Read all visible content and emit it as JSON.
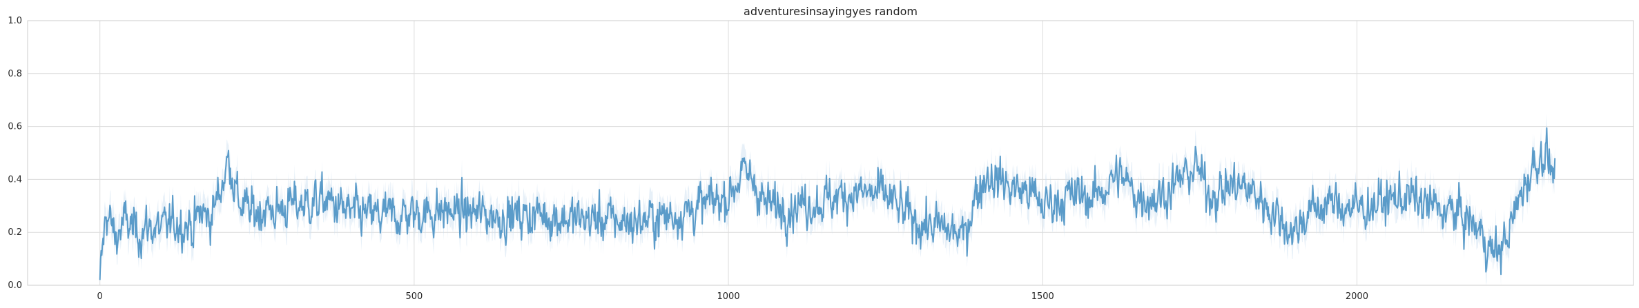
{
  "chart_data": {
    "type": "line",
    "title": "adventuresinsayingyes random",
    "xlabel": "",
    "ylabel": "",
    "xlim": [
      -115,
      2440
    ],
    "ylim": [
      0.0,
      1.0
    ],
    "x_ticks": [
      0,
      500,
      1000,
      1500,
      2000
    ],
    "y_ticks": [
      0.0,
      0.2,
      0.4,
      0.6,
      0.8,
      1.0
    ],
    "x_tick_labels": [
      "0",
      "500",
      "1000",
      "1500",
      "2000"
    ],
    "y_tick_labels": [
      "0.0",
      "0.2",
      "0.4",
      "0.6",
      "0.8",
      "1.0"
    ],
    "grid": true,
    "line_color": "#5a9bc9",
    "band_color": "#c9ddf0",
    "series": [
      {
        "x": [
          0,
          10,
          25,
          40,
          60,
          80,
          100,
          120,
          140,
          150,
          160,
          175,
          190,
          205,
          220,
          240,
          260,
          280,
          300,
          330,
          360,
          400,
          450,
          500,
          550,
          600,
          650,
          700,
          750,
          800,
          850,
          900,
          950,
          1000,
          1020,
          1040,
          1060,
          1100,
          1150,
          1200,
          1250,
          1280,
          1300,
          1330,
          1360,
          1375,
          1390,
          1410,
          1430,
          1450,
          1480,
          1500,
          1530,
          1560,
          1580,
          1600,
          1620,
          1650,
          1680,
          1700,
          1720,
          1745,
          1760,
          1780,
          1800,
          1830,
          1850,
          1870,
          1890,
          1900,
          1920,
          1950,
          1980,
          2000,
          2020,
          2050,
          2080,
          2100,
          2130,
          2160,
          2180,
          2200,
          2215,
          2230,
          2245,
          2260,
          2280,
          2300,
          2315
        ],
        "mean": [
          0.02,
          0.28,
          0.18,
          0.24,
          0.2,
          0.22,
          0.21,
          0.24,
          0.23,
          0.22,
          0.28,
          0.25,
          0.35,
          0.48,
          0.32,
          0.27,
          0.29,
          0.28,
          0.3,
          0.31,
          0.32,
          0.27,
          0.26,
          0.27,
          0.28,
          0.27,
          0.26,
          0.27,
          0.25,
          0.25,
          0.24,
          0.26,
          0.29,
          0.34,
          0.42,
          0.4,
          0.3,
          0.3,
          0.32,
          0.35,
          0.34,
          0.27,
          0.24,
          0.22,
          0.2,
          0.18,
          0.32,
          0.42,
          0.4,
          0.37,
          0.35,
          0.3,
          0.33,
          0.34,
          0.33,
          0.37,
          0.42,
          0.34,
          0.33,
          0.36,
          0.4,
          0.45,
          0.36,
          0.35,
          0.38,
          0.36,
          0.32,
          0.27,
          0.22,
          0.2,
          0.27,
          0.31,
          0.3,
          0.29,
          0.3,
          0.32,
          0.34,
          0.31,
          0.29,
          0.27,
          0.24,
          0.19,
          0.12,
          0.14,
          0.22,
          0.34,
          0.45,
          0.51,
          0.4
        ],
        "noise": 0.09,
        "ci_halfwidth": 0.05,
        "n_points": 2320
      }
    ]
  }
}
